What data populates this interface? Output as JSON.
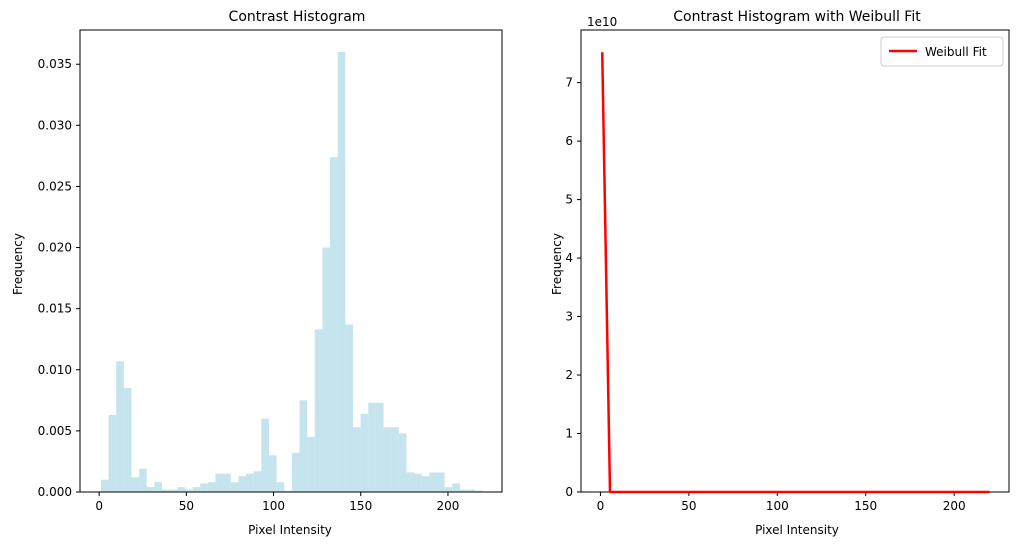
{
  "chart_data": [
    {
      "type": "bar",
      "title": "Contrast Histogram",
      "xlabel": "Pixel Intensity",
      "ylabel": "Frequency",
      "xlim": [
        -11,
        231
      ],
      "ylim": [
        0,
        0.0378
      ],
      "xticks": [
        0,
        50,
        100,
        150,
        200
      ],
      "xtick_labels": [
        "0",
        "50",
        "100",
        "150",
        "200"
      ],
      "yticks": [
        0,
        0.005,
        0.01,
        0.015,
        0.02,
        0.025,
        0.03,
        0.035
      ],
      "ytick_labels": [
        "0.000",
        "0.005",
        "0.010",
        "0.015",
        "0.020",
        "0.025",
        "0.030",
        "0.035"
      ],
      "bar_color": "#add8e6",
      "bar_opacity": 0.7,
      "bin_start": 1,
      "bin_width": 4.38,
      "values": [
        0.001,
        0.0063,
        0.0107,
        0.0085,
        0.0012,
        0.0019,
        0.0004,
        0.0008,
        0.0002,
        0.0002,
        0.0004,
        0.0002,
        0.0004,
        0.0007,
        0.0008,
        0.0015,
        0.0015,
        0.0008,
        0.0013,
        0.0015,
        0.0017,
        0.006,
        0.003,
        0.0008,
        0.0001,
        0.0032,
        0.0075,
        0.0045,
        0.0133,
        0.02,
        0.0274,
        0.036,
        0.0137,
        0.0053,
        0.0064,
        0.0073,
        0.0073,
        0.0053,
        0.0053,
        0.0048,
        0.0016,
        0.0015,
        0.0013,
        0.0016,
        0.0016,
        0.0004,
        0.0007,
        0.0002,
        0.0002,
        0.0001
      ]
    },
    {
      "type": "line",
      "title": "Contrast Histogram with Weibull Fit",
      "xlabel": "Pixel Intensity",
      "ylabel": "Frequency",
      "xlim": [
        -11,
        231
      ],
      "ylim": [
        0,
        7.9
      ],
      "y_scale_label": "1e10",
      "xticks": [
        0,
        50,
        100,
        150,
        200
      ],
      "xtick_labels": [
        "0",
        "50",
        "100",
        "150",
        "200"
      ],
      "yticks": [
        0,
        1,
        2,
        3,
        4,
        5,
        6,
        7
      ],
      "ytick_labels": [
        "0",
        "1",
        "2",
        "3",
        "4",
        "5",
        "6",
        "7"
      ],
      "legend": "top-right",
      "series": [
        {
          "name": "Weibull Fit",
          "color": "#ff0000",
          "x": [
            1,
            5.4,
            220
          ],
          "y": [
            7.52,
            0.0,
            0.0
          ]
        }
      ]
    }
  ]
}
